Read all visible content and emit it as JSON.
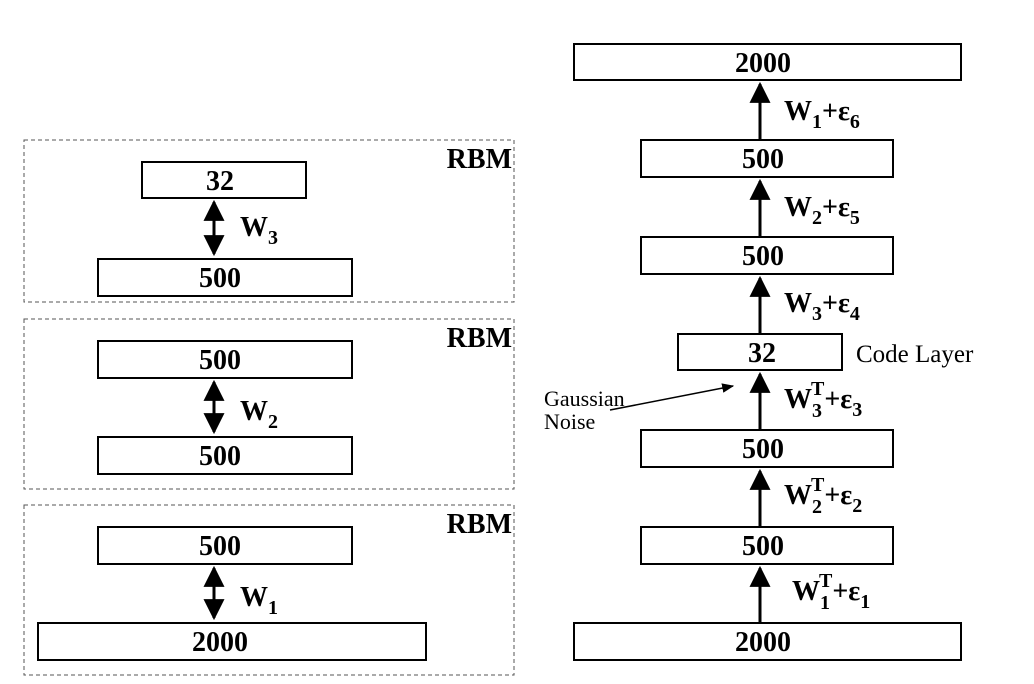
{
  "rbm_stack": {
    "rbm_label": "RBM",
    "rbms": [
      {
        "top": "32",
        "bottom": "500",
        "weight_base": "W",
        "weight_sub": "3"
      },
      {
        "top": "500",
        "bottom": "500",
        "weight_base": "W",
        "weight_sub": "2"
      },
      {
        "top": "500",
        "bottom": "2000",
        "weight_base": "W",
        "weight_sub": "1"
      }
    ]
  },
  "autoencoder": {
    "layers": [
      "2000",
      "500",
      "500",
      "32",
      "500",
      "500",
      "2000"
    ],
    "weights": [
      {
        "base": "W",
        "sub": "1",
        "sup": "T",
        "plus": "+ε",
        "eps_sub": "1"
      },
      {
        "base": "W",
        "sub": "2",
        "sup": "T",
        "plus": "+ε",
        "eps_sub": "2"
      },
      {
        "base": "W",
        "sub": "3",
        "sup": "T",
        "plus": "+ε",
        "eps_sub": "3"
      },
      {
        "base": "W",
        "sub": "3",
        "sup": "",
        "plus": "+ε",
        "eps_sub": "4"
      },
      {
        "base": "W",
        "sub": "2",
        "sup": "",
        "plus": "+ε",
        "eps_sub": "5"
      },
      {
        "base": "W",
        "sub": "1",
        "sup": "",
        "plus": "+ε",
        "eps_sub": "6"
      }
    ],
    "code_layer_label": "Code Layer",
    "noise_label_line1": "Gaussian",
    "noise_label_line2": "Noise"
  }
}
